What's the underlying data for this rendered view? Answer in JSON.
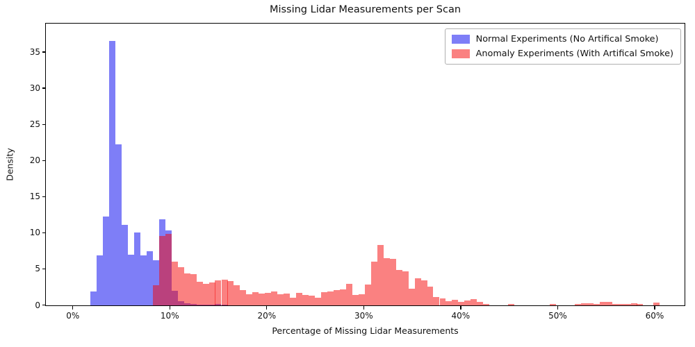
{
  "chart_data": {
    "type": "histogram",
    "title": "Missing Lidar Measurements per Scan",
    "xlabel": "Percentage of Missing Lidar Measurements",
    "ylabel": "Density",
    "grid": false,
    "legend_position": "upper right",
    "x_range_pct": [
      -2.74,
      63.05
    ],
    "y_range": [
      0,
      38.9
    ],
    "bin_width_pct": 0.643,
    "x_ticks": [
      {
        "value": 0,
        "label": "0%"
      },
      {
        "value": 10,
        "label": "10%"
      },
      {
        "value": 20,
        "label": "20%"
      },
      {
        "value": 30,
        "label": "30%"
      },
      {
        "value": 40,
        "label": "40%"
      },
      {
        "value": 50,
        "label": "50%"
      },
      {
        "value": 60,
        "label": "60%"
      }
    ],
    "y_ticks": [
      0,
      5,
      10,
      15,
      20,
      25,
      30,
      35
    ],
    "series": [
      {
        "name": "Normal Experiments (No Artifical Smoke)",
        "color": "rgba(8,8,240,0.52)",
        "bars": [
          [
            1.86,
            1.9
          ],
          [
            2.5,
            6.9
          ],
          [
            3.14,
            12.3
          ],
          [
            3.79,
            36.6
          ],
          [
            4.43,
            22.3
          ],
          [
            5.07,
            11.1
          ],
          [
            5.71,
            7.0
          ],
          [
            6.36,
            10.1
          ],
          [
            7.0,
            6.9
          ],
          [
            7.64,
            7.5
          ],
          [
            8.29,
            6.2
          ],
          [
            8.93,
            11.9
          ],
          [
            9.57,
            10.4
          ],
          [
            10.21,
            2.0
          ],
          [
            10.86,
            0.6
          ],
          [
            11.5,
            0.25
          ],
          [
            12.14,
            0.15
          ],
          [
            12.79,
            0.1
          ],
          [
            13.43,
            0.1
          ],
          [
            14.07,
            0.1
          ],
          [
            14.71,
            0.15
          ],
          [
            15.36,
            0.1
          ]
        ]
      },
      {
        "name": "Anomaly Experiments (With Artifical Smoke)",
        "color": "rgba(246,4,4,0.5)",
        "bars": [
          [
            8.29,
            2.8
          ],
          [
            8.93,
            9.6
          ],
          [
            9.57,
            9.9
          ],
          [
            10.21,
            6.1
          ],
          [
            10.86,
            5.3
          ],
          [
            11.5,
            4.4
          ],
          [
            12.14,
            4.3
          ],
          [
            12.79,
            3.3
          ],
          [
            13.43,
            3.0
          ],
          [
            14.07,
            3.2
          ],
          [
            14.71,
            3.5
          ],
          [
            15.36,
            3.6
          ],
          [
            16.0,
            3.4
          ],
          [
            16.64,
            2.8
          ],
          [
            17.29,
            2.1
          ],
          [
            17.93,
            1.5
          ],
          [
            18.57,
            1.8
          ],
          [
            19.21,
            1.6
          ],
          [
            19.86,
            1.75
          ],
          [
            20.5,
            1.9
          ],
          [
            21.14,
            1.5
          ],
          [
            21.79,
            1.6
          ],
          [
            22.43,
            1.1
          ],
          [
            23.07,
            1.7
          ],
          [
            23.71,
            1.4
          ],
          [
            24.36,
            1.3
          ],
          [
            25.0,
            1.05
          ],
          [
            25.64,
            1.85
          ],
          [
            26.29,
            1.9
          ],
          [
            26.93,
            2.1
          ],
          [
            27.57,
            2.2
          ],
          [
            28.21,
            2.95
          ],
          [
            28.86,
            1.45
          ],
          [
            29.5,
            1.5
          ],
          [
            30.14,
            2.9
          ],
          [
            30.79,
            6.1
          ],
          [
            31.43,
            8.35
          ],
          [
            32.07,
            6.5
          ],
          [
            32.71,
            6.4
          ],
          [
            33.36,
            4.9
          ],
          [
            34.0,
            4.7
          ],
          [
            34.64,
            2.3
          ],
          [
            35.29,
            3.7
          ],
          [
            35.93,
            3.5
          ],
          [
            36.57,
            2.6
          ],
          [
            37.21,
            1.2
          ],
          [
            37.86,
            0.95
          ],
          [
            38.5,
            0.6
          ],
          [
            39.14,
            0.8
          ],
          [
            39.79,
            0.5
          ],
          [
            40.43,
            0.7
          ],
          [
            41.07,
            0.9
          ],
          [
            41.71,
            0.5
          ],
          [
            42.36,
            0.15
          ],
          [
            44.93,
            0.15
          ],
          [
            49.21,
            0.2
          ],
          [
            51.79,
            0.15
          ],
          [
            52.43,
            0.3
          ],
          [
            53.07,
            0.3
          ],
          [
            53.71,
            0.15
          ],
          [
            54.36,
            0.5
          ],
          [
            55.0,
            0.45
          ],
          [
            55.64,
            0.15
          ],
          [
            56.29,
            0.2
          ],
          [
            56.93,
            0.2
          ],
          [
            57.57,
            0.3
          ],
          [
            58.21,
            0.15
          ],
          [
            59.93,
            0.35
          ]
        ]
      }
    ]
  }
}
